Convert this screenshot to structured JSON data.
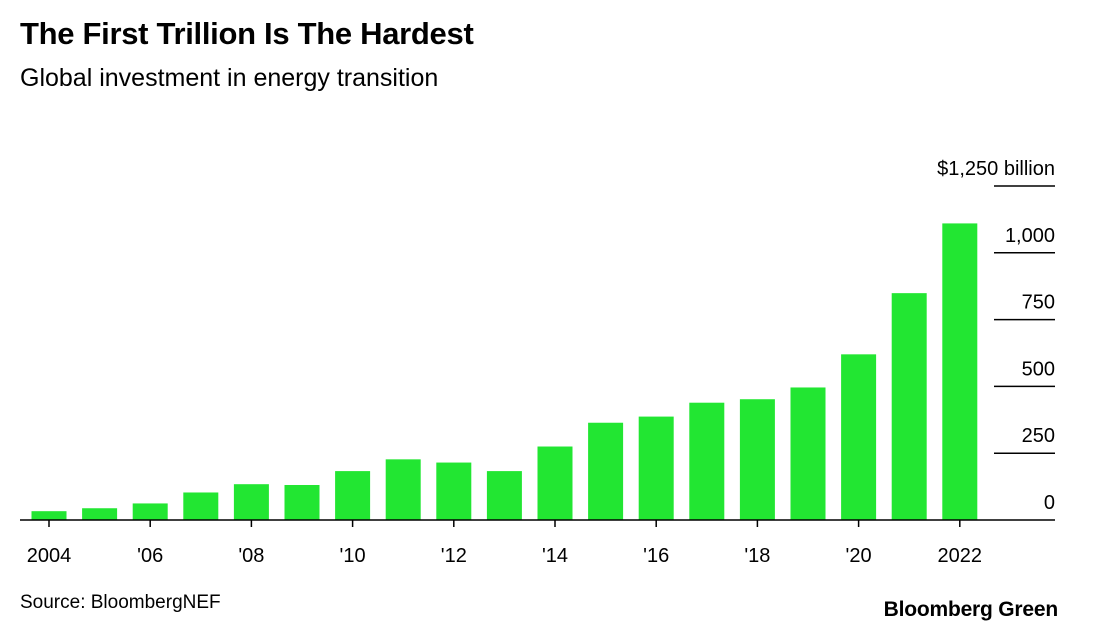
{
  "header": {
    "title": "The First Trillion Is The Hardest",
    "subtitle": "Global investment in energy transition"
  },
  "footer": {
    "source": "Source: BloombergNEF",
    "brand": "Bloomberg Green"
  },
  "colors": {
    "bar": "#22e632",
    "axis": "#000000"
  },
  "chart_data": {
    "type": "bar",
    "categories": [
      "2004",
      "2005",
      "2006",
      "2007",
      "2008",
      "2009",
      "2010",
      "2011",
      "2012",
      "2013",
      "2014",
      "2015",
      "2016",
      "2017",
      "2018",
      "2019",
      "2020",
      "2021",
      "2022"
    ],
    "x_tick_labels": [
      "2004",
      "'06",
      "'08",
      "'10",
      "'12",
      "'14",
      "'16",
      "'18",
      "'20",
      "2022"
    ],
    "x_tick_categories": [
      "2004",
      "2006",
      "2008",
      "2010",
      "2012",
      "2014",
      "2016",
      "2018",
      "2020",
      "2022"
    ],
    "values": [
      33,
      44,
      62,
      103,
      134,
      131,
      183,
      227,
      215,
      183,
      275,
      364,
      387,
      439,
      452,
      496,
      620,
      849,
      1110
    ],
    "ylim": [
      0,
      1250
    ],
    "y_ticks": [
      0,
      250,
      500,
      750,
      1000,
      1250
    ],
    "y_tick_labels": [
      "0",
      "250",
      "500",
      "750",
      "1,000",
      "$1,250 billion"
    ],
    "grid": false,
    "legend": "none"
  }
}
